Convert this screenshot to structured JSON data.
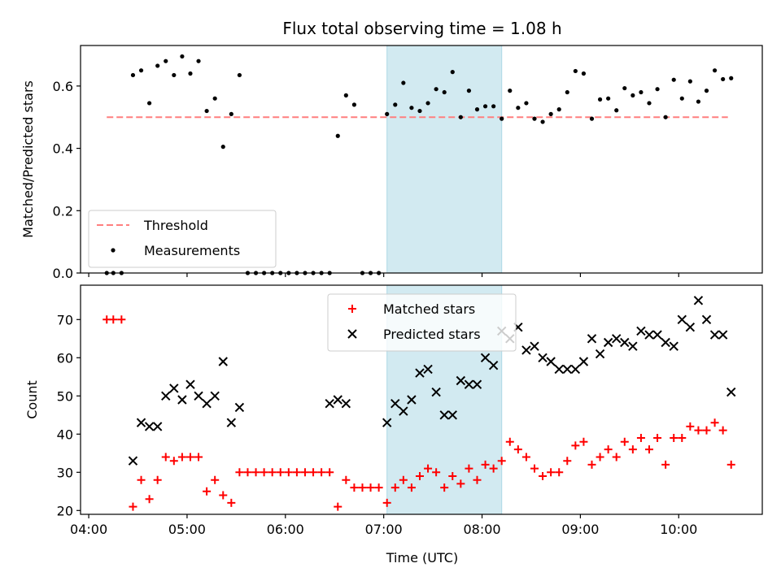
{
  "chart_data": {
    "title": "Flux total observing time = 1.08 h",
    "xlabel": "Time (UTC)",
    "x_ticks": [
      "04:00",
      "05:00",
      "06:00",
      "07:00",
      "08:00",
      "09:00",
      "10:00"
    ],
    "highlight_span": {
      "start": "07:02",
      "end": "08:12",
      "color": "#add8e6"
    },
    "panels": [
      {
        "type": "scatter",
        "ylabel": "Matched/Predicted stars",
        "ylim": [
          0,
          0.73
        ],
        "y_ticks": [
          0.0,
          0.2,
          0.4,
          0.6
        ],
        "legend_position": "lower-left",
        "series": [
          {
            "name": "Threshold",
            "style": "dashed-line",
            "color": "#ff7f7f",
            "x": [
              "04:11",
              "10:30"
            ],
            "y": [
              0.5,
              0.5
            ]
          },
          {
            "name": "Measurements",
            "style": "dot",
            "color": "#000000",
            "x": [
              "04:11",
              "04:15",
              "04:20",
              "04:27",
              "04:32",
              "04:37",
              "04:42",
              "04:47",
              "04:52",
              "04:57",
              "05:02",
              "05:07",
              "05:12",
              "05:17",
              "05:22",
              "05:27",
              "05:32",
              "05:37",
              "05:42",
              "05:47",
              "05:52",
              "05:57",
              "06:02",
              "06:07",
              "06:12",
              "06:17",
              "06:22",
              "06:27",
              "06:32",
              "06:37",
              "06:42",
              "06:47",
              "06:52",
              "06:57",
              "07:02",
              "07:07",
              "07:12",
              "07:17",
              "07:22",
              "07:27",
              "07:32",
              "07:37",
              "07:42",
              "07:47",
              "07:52",
              "07:57",
              "08:02",
              "08:07",
              "08:12",
              "08:17",
              "08:22",
              "08:27",
              "08:32",
              "08:37",
              "08:42",
              "08:47",
              "08:52",
              "08:57",
              "09:02",
              "09:07",
              "09:12",
              "09:17",
              "09:22",
              "09:27",
              "09:32",
              "09:37",
              "09:42",
              "09:47",
              "09:52",
              "09:57",
              "10:02",
              "10:07",
              "10:12",
              "10:17",
              "10:22",
              "10:27",
              "10:32"
            ],
            "y": [
              0.0,
              0.0,
              0.0,
              0.635,
              0.65,
              0.545,
              0.665,
              0.68,
              0.635,
              0.695,
              0.64,
              0.68,
              0.52,
              0.56,
              0.405,
              0.51,
              0.635,
              0.0,
              0.0,
              0.0,
              0.0,
              0.0,
              0.0,
              0.0,
              0.0,
              0.0,
              0.0,
              0.0,
              0.44,
              0.57,
              0.54,
              0.0,
              0.0,
              0.0,
              0.51,
              0.54,
              0.61,
              0.53,
              0.52,
              0.545,
              0.59,
              0.58,
              0.645,
              0.5,
              0.585,
              0.525,
              0.535,
              0.535,
              0.495,
              0.585,
              0.53,
              0.545,
              0.495,
              0.485,
              0.51,
              0.525,
              0.58,
              0.648,
              0.64,
              0.495,
              0.557,
              0.56,
              0.522,
              0.593,
              0.57,
              0.58,
              0.545,
              0.59,
              0.5,
              0.62,
              0.56,
              0.615,
              0.55,
              0.585,
              0.65,
              0.622,
              0.625
            ]
          }
        ]
      },
      {
        "type": "scatter",
        "ylabel": "Count",
        "ylim": [
          19,
          79
        ],
        "y_ticks": [
          20,
          30,
          40,
          50,
          60,
          70
        ],
        "legend_position": "upper-center",
        "series": [
          {
            "name": "Matched stars",
            "style": "plus",
            "color": "#ff0000",
            "x": [
              "04:11",
              "04:15",
              "04:20",
              "04:27",
              "04:32",
              "04:37",
              "04:42",
              "04:47",
              "04:52",
              "04:57",
              "05:02",
              "05:07",
              "05:12",
              "05:17",
              "05:22",
              "05:27",
              "05:32",
              "05:37",
              "05:42",
              "05:47",
              "05:52",
              "05:57",
              "06:02",
              "06:07",
              "06:12",
              "06:17",
              "06:22",
              "06:27",
              "06:32",
              "06:37",
              "06:42",
              "06:47",
              "06:52",
              "06:57",
              "07:02",
              "07:07",
              "07:12",
              "07:17",
              "07:22",
              "07:27",
              "07:32",
              "07:37",
              "07:42",
              "07:47",
              "07:52",
              "07:57",
              "08:02",
              "08:07",
              "08:12",
              "08:17",
              "08:22",
              "08:27",
              "08:32",
              "08:37",
              "08:42",
              "08:47",
              "08:52",
              "08:57",
              "09:02",
              "09:07",
              "09:12",
              "09:17",
              "09:22",
              "09:27",
              "09:32",
              "09:37",
              "09:42",
              "09:47",
              "09:52",
              "09:57",
              "10:02",
              "10:07",
              "10:12",
              "10:17",
              "10:22",
              "10:27",
              "10:32"
            ],
            "y": [
              70,
              70,
              70,
              21,
              28,
              23,
              28,
              34,
              33,
              34,
              34,
              34,
              25,
              28,
              24,
              22,
              30,
              30,
              30,
              30,
              30,
              30,
              30,
              30,
              30,
              30,
              30,
              30,
              21,
              28,
              26,
              26,
              26,
              26,
              22,
              26,
              28,
              26,
              29,
              31,
              30,
              26,
              29,
              27,
              31,
              28,
              32,
              31,
              33,
              38,
              36,
              34,
              31,
              29,
              30,
              30,
              33,
              37,
              38,
              32,
              34,
              36,
              34,
              38,
              36,
              39,
              36,
              39,
              32,
              39,
              39,
              42,
              41,
              41,
              43,
              41,
              32
            ]
          },
          {
            "name": "Predicted stars",
            "style": "x",
            "color": "#000000",
            "x": [
              "04:27",
              "04:32",
              "04:37",
              "04:42",
              "04:47",
              "04:52",
              "04:57",
              "05:02",
              "05:07",
              "05:12",
              "05:17",
              "05:22",
              "05:27",
              "05:32",
              "06:27",
              "06:32",
              "06:37",
              "07:02",
              "07:07",
              "07:12",
              "07:17",
              "07:22",
              "07:27",
              "07:32",
              "07:37",
              "07:42",
              "07:47",
              "07:52",
              "07:57",
              "08:02",
              "08:07",
              "08:12",
              "08:17",
              "08:22",
              "08:27",
              "08:32",
              "08:37",
              "08:42",
              "08:47",
              "08:52",
              "08:57",
              "09:02",
              "09:07",
              "09:12",
              "09:17",
              "09:22",
              "09:27",
              "09:32",
              "09:37",
              "09:42",
              "09:47",
              "09:52",
              "09:57",
              "10:02",
              "10:07",
              "10:12",
              "10:17",
              "10:22",
              "10:27",
              "10:32"
            ],
            "y": [
              33,
              43,
              42,
              42,
              50,
              52,
              49,
              53,
              50,
              48,
              50,
              59,
              43,
              47,
              48,
              49,
              48,
              43,
              48,
              46,
              49,
              56,
              57,
              51,
              45,
              45,
              54,
              53,
              53,
              60,
              58,
              67,
              65,
              68,
              62,
              63,
              60,
              59,
              57,
              57,
              57,
              59,
              65,
              61,
              64,
              65,
              64,
              63,
              67,
              66,
              66,
              64,
              63,
              70,
              68,
              75,
              70,
              66,
              66,
              51
            ]
          }
        ]
      }
    ]
  }
}
